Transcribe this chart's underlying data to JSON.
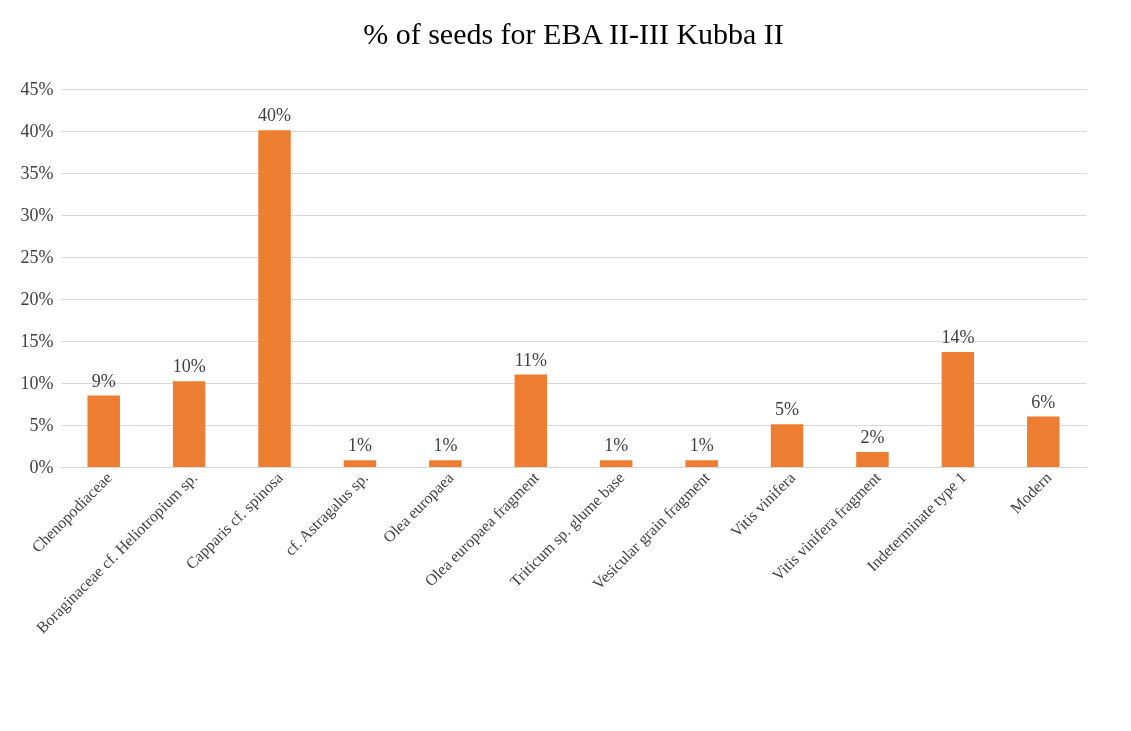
{
  "chart_data": {
    "type": "bar",
    "title": "% of seeds for EBA II-III Kubba II",
    "categories": [
      "Chenopodiaceae",
      "Boraginaceae cf. Heliotropium sp.",
      "Capparis cf. spinosa",
      "cf. Astragalus sp.",
      "Olea europaea",
      "Olea europaea fragment",
      "Triticum sp. glume base",
      "Vesicular grain fragment",
      "Vitis vinifera",
      "Vitis vinifera fragment",
      "Indeterminate type 1",
      "Modern"
    ],
    "values": [
      8.5,
      10.2,
      40.1,
      0.8,
      0.8,
      11.0,
      0.8,
      0.8,
      5.1,
      1.8,
      13.7,
      6.0
    ],
    "value_labels": [
      "9%",
      "10%",
      "40%",
      "1%",
      "1%",
      "11%",
      "1%",
      "1%",
      "5%",
      "2%",
      "14%",
      "6%"
    ],
    "color": "#ed7d31",
    "ylim": [
      0,
      45
    ],
    "yticks": [
      {
        "value": 0,
        "label": "0%"
      },
      {
        "value": 5,
        "label": "5%"
      },
      {
        "value": 10,
        "label": "10%"
      },
      {
        "value": 15,
        "label": "15%"
      },
      {
        "value": 20,
        "label": "20%"
      },
      {
        "value": 25,
        "label": "25%"
      },
      {
        "value": 30,
        "label": "30%"
      },
      {
        "value": 35,
        "label": "35%"
      },
      {
        "value": 40,
        "label": "40%"
      },
      {
        "value": 45,
        "label": "45%"
      }
    ],
    "grid": "y"
  }
}
